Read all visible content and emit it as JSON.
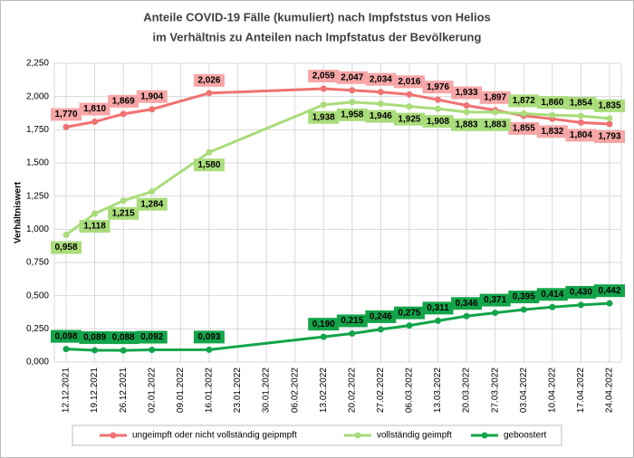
{
  "chart_data": {
    "type": "line",
    "title": "Anteile COVID-19 Fälle (kumuliert) nach Impfststus von Helios",
    "subtitle": "im Verhältnis zu Anteilen nach Impfstatus der Bevölkerung",
    "y_label": "Verhältniswert",
    "x": [
      "12.12.2021",
      "19.12.2021",
      "26.12.2021",
      "02.01.2022",
      "16.01.2022",
      "13.02.2022",
      "20.02.2022",
      "27.02.2022",
      "06.03.2022",
      "13.03.2022",
      "20.03.2022",
      "27.03.2022",
      "03.04.2022",
      "10.04.2022",
      "17.04.2022",
      "24.04.2022"
    ],
    "xlim": [
      "12.12.2021",
      "24.04.2022"
    ],
    "xticks": [
      "12.12.2021",
      "19.12.2021",
      "26.12.2021",
      "02.01.2022",
      "09.01.2022",
      "16.01.2022",
      "23.01.2022",
      "30.01.2022",
      "06.02.2022",
      "13.02.2022",
      "20.02.2022",
      "27.02.2022",
      "06.03.2022",
      "13.03.2022",
      "20.03.2022",
      "27.03.2022",
      "03.04.2022",
      "10.04.2022",
      "17.04.2022",
      "24.04.2022"
    ],
    "ylim": [
      0,
      2.25
    ],
    "yticks": [
      {
        "value": 0,
        "label": "0,000"
      },
      {
        "value": 0.25,
        "label": "0,250"
      },
      {
        "value": 0.5,
        "label": "0,500"
      },
      {
        "value": 0.75,
        "label": "0,750"
      },
      {
        "value": 1,
        "label": "1,000"
      },
      {
        "value": 1.25,
        "label": "1,250"
      },
      {
        "value": 1.5,
        "label": "1,500"
      },
      {
        "value": 1.75,
        "label": "1,750"
      },
      {
        "value": 2,
        "label": "2,000"
      },
      {
        "value": 2.25,
        "label": "2,250"
      }
    ],
    "grid": true,
    "legend": "bottom",
    "series": [
      {
        "name": "ungeimpft oder nicht vollständig geipmpft",
        "color": "#f07272",
        "label_color": "#f6a6a6",
        "values": [
          1.77,
          1.81,
          1.869,
          1.904,
          2.026,
          2.059,
          2.047,
          2.034,
          2.016,
          1.976,
          1.933,
          1.897,
          1.855,
          1.832,
          1.804,
          1.793
        ],
        "value_labels": [
          "1,770",
          "1,810",
          "1,869",
          "1,904",
          "2,026",
          "2,059",
          "2,047",
          "2,034",
          "2,016",
          "1,976",
          "1,933",
          "1,897",
          "1,855",
          "1,832",
          "1,804",
          "1,793"
        ]
      },
      {
        "name": "vollständig geimpft",
        "color": "#a9dc7a",
        "label_color": "#a9dc7a",
        "values": [
          0.958,
          1.118,
          1.215,
          1.284,
          1.58,
          1.938,
          1.958,
          1.946,
          1.925,
          1.908,
          1.883,
          1.883,
          1.872,
          1.86,
          1.854,
          1.835
        ],
        "value_labels": [
          "0,958",
          "1,118",
          "1,215",
          "1,284",
          "1,580",
          "1,938",
          "1,958",
          "1,946",
          "1,925",
          "1,908",
          "1,883",
          "1,883",
          "1,872",
          "1,860",
          "1,854",
          "1,835"
        ]
      },
      {
        "name": "geboostert",
        "color": "#13a44a",
        "label_color": "#13a44a",
        "values": [
          0.098,
          0.089,
          0.088,
          0.092,
          0.093,
          0.19,
          0.215,
          0.246,
          0.275,
          0.311,
          0.346,
          0.371,
          0.395,
          0.414,
          0.43,
          0.442
        ],
        "value_labels": [
          "0,098",
          "0,089",
          "0,088",
          "0,092",
          "0,093",
          "0,190",
          "0,215",
          "0,246",
          "0,275",
          "0,311",
          "0,346",
          "0,371",
          "0,395",
          "0,414",
          "0,430",
          "0,442"
        ]
      }
    ]
  }
}
